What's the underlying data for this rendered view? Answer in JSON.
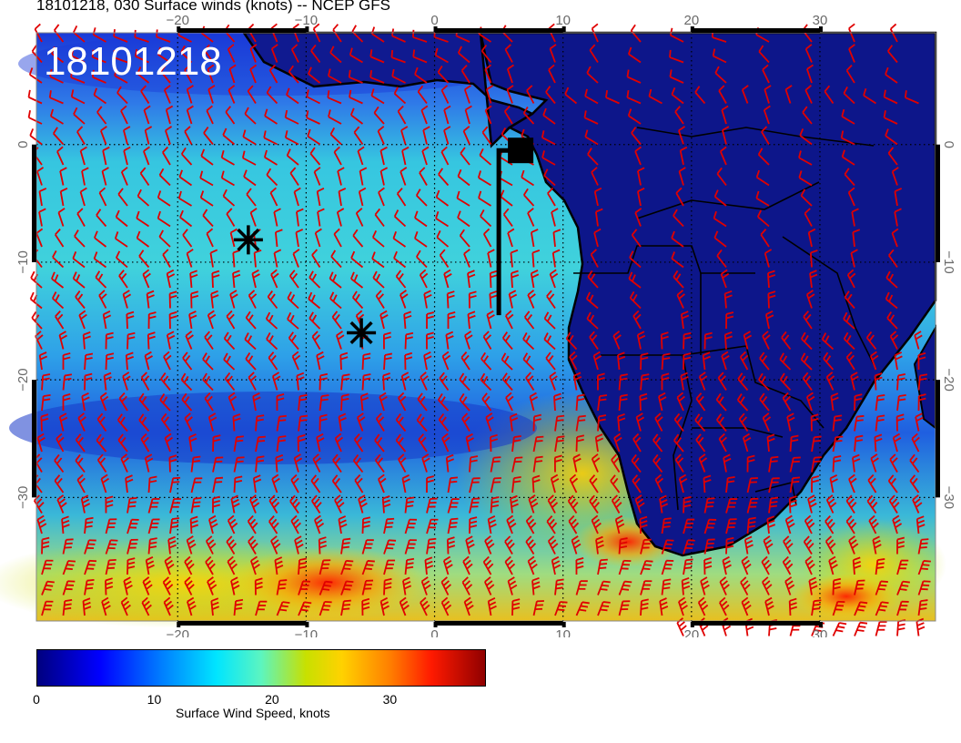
{
  "title": "18101218, 030 Surface winds (knots) -- NCEP GFS",
  "stamp": "18101218",
  "map": {
    "lon_min": -31,
    "lon_max": 39,
    "lat_max": 9.5,
    "lat_min": -40.5,
    "grid": "dotted",
    "lon_ticks": [
      -20,
      -10,
      0,
      10,
      20,
      30
    ],
    "lon_labels": [
      "−20",
      "−10",
      "0",
      "10",
      "20",
      "30"
    ],
    "lat_ticks": [
      0,
      -10,
      -20,
      -30
    ],
    "lat_labels": [
      "0",
      "−10",
      "−20",
      "−30"
    ],
    "barb_color": "#e00000",
    "coast_color": "#000000",
    "markers": [
      {
        "name": "asterisk-marker-1",
        "lon": -14.5,
        "lat": -8.1
      },
      {
        "name": "asterisk-marker-2",
        "lon": -5.7,
        "lat": -16.0
      }
    ],
    "track": {
      "lon": 5,
      "lat_start": -0.5,
      "lat_end": -14.5,
      "end_lon": 6.7
    },
    "square_marker": {
      "lon": 6.7,
      "lat": -0.5
    }
  },
  "colorbar": {
    "label": "Surface Wind Speed, knots",
    "min": 0,
    "max": 38,
    "ticks": [
      0,
      10,
      20,
      30
    ],
    "tick_labels": [
      "0",
      "10",
      "20",
      "30"
    ],
    "colors": [
      "#00007f",
      "#0000ff",
      "#0080ff",
      "#00e5ff",
      "#5cf5c0",
      "#c8e000",
      "#ffd200",
      "#ff7d00",
      "#ff1a00",
      "#900000"
    ]
  }
}
